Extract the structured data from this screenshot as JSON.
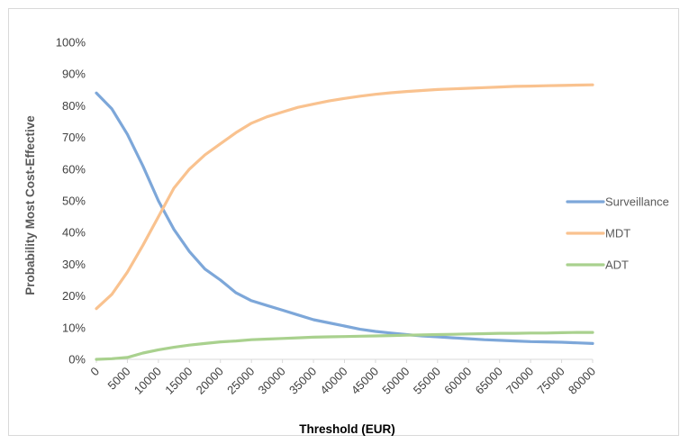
{
  "chart_data": {
    "type": "line",
    "title": "",
    "xlabel": "Threshold (EUR)",
    "ylabel": "Probability Most Cost-Effective",
    "xlim": [
      0,
      80000
    ],
    "ylim": [
      0,
      1
    ],
    "x_tick_labels": [
      "0",
      "5000",
      "10000",
      "15000",
      "20000",
      "25000",
      "30000",
      "35000",
      "40000",
      "45000",
      "50000",
      "55000",
      "60000",
      "65000",
      "70000",
      "75000",
      "80000"
    ],
    "y_tick_labels": [
      "0%",
      "10%",
      "20%",
      "30%",
      "40%",
      "50%",
      "60%",
      "70%",
      "80%",
      "90%",
      "100%"
    ],
    "grid": false,
    "legend_position": "right",
    "x": [
      0,
      2500,
      5000,
      7500,
      10000,
      12500,
      15000,
      17500,
      20000,
      22500,
      25000,
      27500,
      30000,
      32500,
      35000,
      37500,
      40000,
      42500,
      45000,
      47500,
      50000,
      52500,
      55000,
      57500,
      60000,
      62500,
      65000,
      67500,
      70000,
      72500,
      75000,
      77500,
      80000
    ],
    "series": [
      {
        "name": "Surveillance",
        "color": "#7da7d9",
        "values": [
          0.84,
          0.79,
          0.71,
          0.61,
          0.5,
          0.41,
          0.34,
          0.285,
          0.25,
          0.21,
          0.185,
          0.17,
          0.155,
          0.14,
          0.125,
          0.115,
          0.105,
          0.095,
          0.088,
          0.083,
          0.078,
          0.074,
          0.071,
          0.068,
          0.065,
          0.062,
          0.06,
          0.058,
          0.056,
          0.055,
          0.054,
          0.052,
          0.05
        ]
      },
      {
        "name": "MDT",
        "color": "#f9c28f",
        "values": [
          0.16,
          0.205,
          0.275,
          0.36,
          0.45,
          0.54,
          0.6,
          0.645,
          0.68,
          0.715,
          0.745,
          0.765,
          0.78,
          0.795,
          0.805,
          0.815,
          0.823,
          0.83,
          0.836,
          0.841,
          0.845,
          0.848,
          0.851,
          0.853,
          0.855,
          0.857,
          0.859,
          0.861,
          0.862,
          0.863,
          0.864,
          0.865,
          0.866
        ]
      },
      {
        "name": "ADT",
        "color": "#a9d18e",
        "values": [
          0.0,
          0.002,
          0.006,
          0.02,
          0.03,
          0.038,
          0.045,
          0.05,
          0.055,
          0.058,
          0.062,
          0.064,
          0.066,
          0.068,
          0.07,
          0.071,
          0.072,
          0.073,
          0.074,
          0.075,
          0.076,
          0.077,
          0.078,
          0.079,
          0.08,
          0.081,
          0.082,
          0.082,
          0.083,
          0.083,
          0.084,
          0.085,
          0.085
        ]
      }
    ]
  }
}
